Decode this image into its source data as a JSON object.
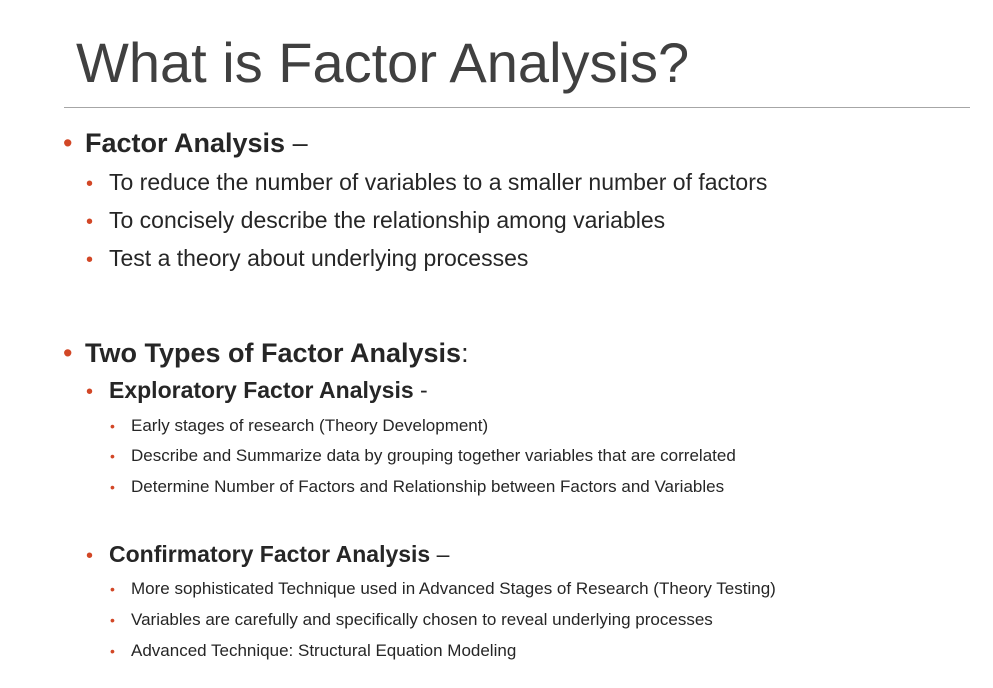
{
  "slide": {
    "title": "What is Factor Analysis?",
    "bullet_glyph": "•",
    "accent_color": "#d24726",
    "section1": {
      "heading": "Factor Analysis",
      "heading_suffix": " –",
      "items": [
        "To reduce the number of variables to a smaller number of factors",
        "To concisely describe the relationship among variables",
        "Test a theory about underlying processes"
      ]
    },
    "section2": {
      "heading": "Two Types of Factor Analysis",
      "heading_suffix": ":",
      "exploratory": {
        "heading": "Exploratory Factor Analysis",
        "heading_suffix": "  -",
        "items": [
          "Early stages of research (Theory Development)",
          "Describe and Summarize data by grouping together variables that are correlated",
          "Determine Number of Factors and Relationship between Factors and Variables"
        ]
      },
      "confirmatory": {
        "heading": "Confirmatory Factor Analysis",
        "heading_suffix": " –",
        "items": [
          "More sophisticated Technique used in Advanced Stages of Research (Theory Testing)",
          "Variables are carefully and specifically chosen to reveal underlying processes",
          "Advanced Technique:  Structural Equation Modeling"
        ]
      }
    }
  }
}
